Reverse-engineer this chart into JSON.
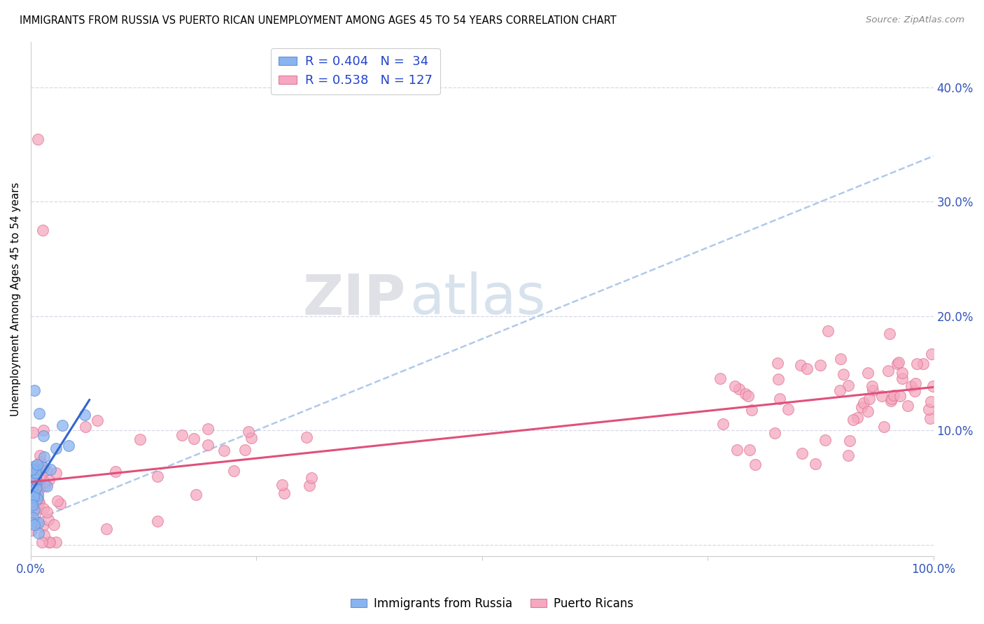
{
  "title": "IMMIGRANTS FROM RUSSIA VS PUERTO RICAN UNEMPLOYMENT AMONG AGES 45 TO 54 YEARS CORRELATION CHART",
  "source": "Source: ZipAtlas.com",
  "ylabel": "Unemployment Among Ages 45 to 54 years",
  "xlim": [
    0.0,
    1.0
  ],
  "ylim": [
    -0.01,
    0.44
  ],
  "ytick_vals": [
    0.0,
    0.1,
    0.2,
    0.3,
    0.4
  ],
  "ytick_labels": [
    "",
    "10.0%",
    "20.0%",
    "30.0%",
    "40.0%"
  ],
  "xtick_vals": [
    0.0,
    0.25,
    0.5,
    0.75,
    1.0
  ],
  "xtick_labels": [
    "0.0%",
    "",
    "",
    "",
    "100.0%"
  ],
  "russia_R": 0.404,
  "russia_N": 34,
  "puerto_R": 0.538,
  "puerto_N": 127,
  "russia_color": "#8ab4f0",
  "russia_edge": "#6090d8",
  "puerto_color": "#f5a8bf",
  "puerto_edge": "#e07898",
  "russia_line_color": "#3366cc",
  "puerto_line_color": "#e0507a",
  "dashed_line_color": "#a8c4e8",
  "grid_color": "#d8d8e8",
  "tick_color": "#3355bb",
  "legend_text_color": "#2244cc",
  "watermark1": "ZIP",
  "watermark2": "atlas",
  "background": "#ffffff"
}
